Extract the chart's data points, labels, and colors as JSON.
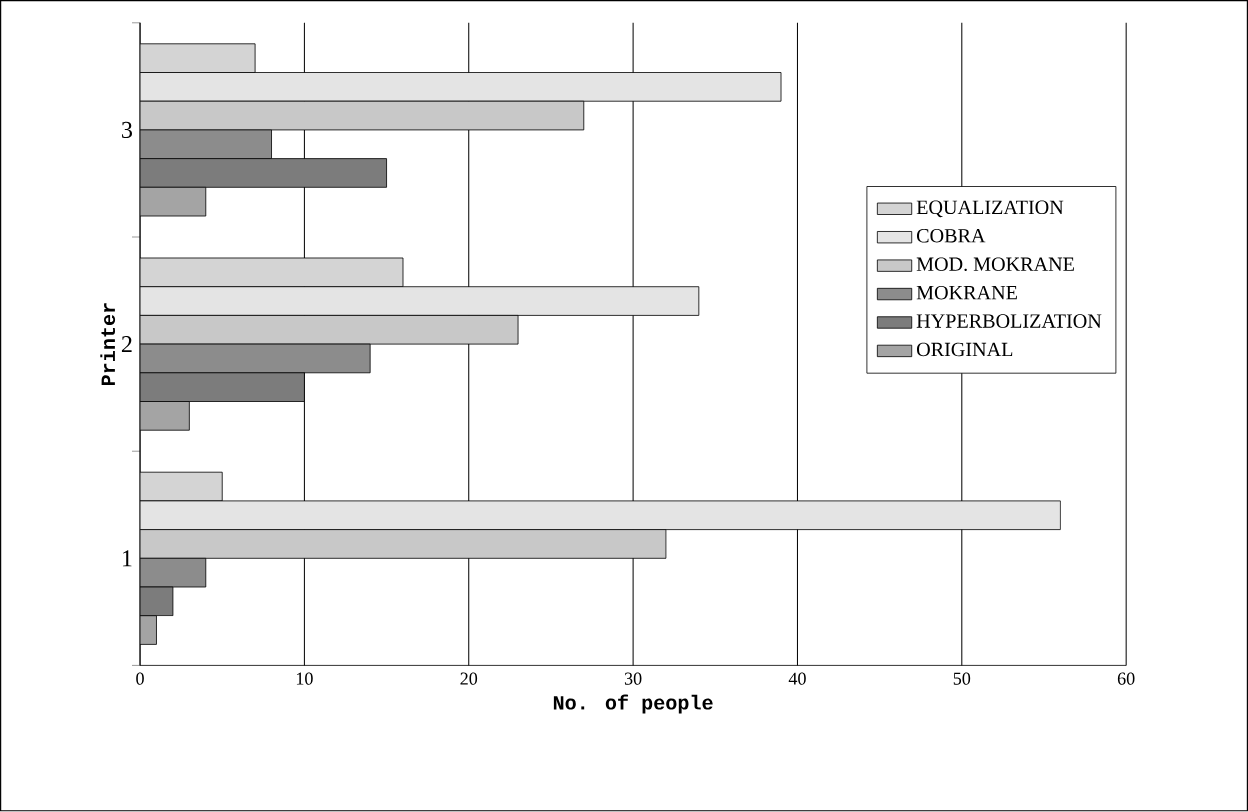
{
  "chart_data": {
    "type": "bar",
    "orientation": "horizontal",
    "xlabel": "No. of people",
    "ylabel": "Printer",
    "categories": [
      "3",
      "2",
      "1"
    ],
    "series": [
      {
        "name": "EQUALIZATION",
        "color": "#d4d4d4",
        "values": [
          7,
          16,
          5
        ]
      },
      {
        "name": "COBRA",
        "color": "#e4e4e4",
        "values": [
          39,
          34,
          56
        ]
      },
      {
        "name": "MOD. MOKRANE",
        "color": "#c8c8c8",
        "values": [
          27,
          23,
          32
        ]
      },
      {
        "name": "MOKRANE",
        "color": "#8c8c8c",
        "values": [
          8,
          14,
          4
        ]
      },
      {
        "name": "HYPERBOLIZATION",
        "color": "#7c7c7c",
        "values": [
          15,
          10,
          2
        ]
      },
      {
        "name": "ORIGINAL",
        "color": "#a4a4a4",
        "values": [
          4,
          3,
          1
        ]
      }
    ],
    "xlim": [
      0,
      60
    ],
    "xticks": [
      0,
      10,
      20,
      30,
      40,
      50,
      60
    ],
    "grid": "x",
    "legend": "right"
  }
}
